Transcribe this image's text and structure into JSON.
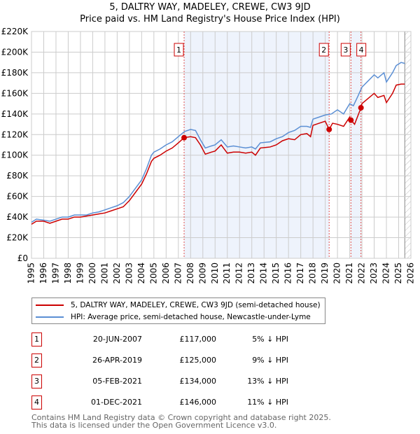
{
  "title": "5, DALTRY WAY, MADELEY, CREWE, CW3 9JD",
  "subtitle": "Price paid vs. HM Land Registry's House Price Index (HPI)",
  "chart_data": {
    "type": "line",
    "xlim": [
      1995,
      2026
    ],
    "ylim": [
      0,
      220000
    ],
    "yticks": [
      {
        "v": 0,
        "l": "£0"
      },
      {
        "v": 20000,
        "l": "£20K"
      },
      {
        "v": 40000,
        "l": "£40K"
      },
      {
        "v": 60000,
        "l": "£60K"
      },
      {
        "v": 80000,
        "l": "£80K"
      },
      {
        "v": 100000,
        "l": "£100K"
      },
      {
        "v": 120000,
        "l": "£120K"
      },
      {
        "v": 140000,
        "l": "£140K"
      },
      {
        "v": 160000,
        "l": "£160K"
      },
      {
        "v": 180000,
        "l": "£180K"
      },
      {
        "v": 200000,
        "l": "£200K"
      },
      {
        "v": 220000,
        "l": "£220K"
      }
    ],
    "xticks": [
      1995,
      1996,
      1997,
      1998,
      1999,
      2000,
      2001,
      2002,
      2003,
      2004,
      2005,
      2006,
      2007,
      2008,
      2009,
      2010,
      2011,
      2012,
      2013,
      2014,
      2015,
      2016,
      2017,
      2018,
      2019,
      2020,
      2021,
      2022,
      2023,
      2024,
      2025,
      2026
    ],
    "grid": true,
    "shaded_ranges": [
      [
        2007.47,
        2019.32
      ],
      [
        2021.1,
        2021.92
      ]
    ],
    "hatched_from": 2025.5,
    "series": [
      {
        "name": "5, DALTRY WAY, MADELEY, CREWE, CW3 9JD (semi-detached house)",
        "color": "#cc0000",
        "x": [
          1995,
          1995.4,
          1996,
          1996.5,
          1997,
          1997.5,
          1998,
          1998.5,
          1999,
          1999.5,
          2000,
          2000.5,
          2001,
          2001.5,
          2002,
          2002.5,
          2003,
          2003.5,
          2004,
          2004.4,
          2004.8,
          2005,
          2005.5,
          2006,
          2006.5,
          2007,
          2007.47,
          2008,
          2008.4,
          2008.8,
          2009.2,
          2009.7,
          2010,
          2010.5,
          2011,
          2011.5,
          2012,
          2012.5,
          2013,
          2013.3,
          2013.7,
          2014.5,
          2015,
          2015.5,
          2016,
          2016.5,
          2017,
          2017.5,
          2017.8,
          2018,
          2018.5,
          2019,
          2019.32,
          2019.6,
          2020,
          2020.5,
          2021,
          2021.1,
          2021.4,
          2021.92,
          2022,
          2022.5,
          2023,
          2023.3,
          2023.8,
          2024,
          2024.5,
          2024.8,
          2025.2,
          2025.5
        ],
        "y": [
          33000,
          36000,
          36000,
          34000,
          36000,
          38000,
          38000,
          40000,
          40000,
          41000,
          42000,
          43000,
          44000,
          46000,
          48000,
          50000,
          56000,
          64000,
          72000,
          82000,
          94000,
          97000,
          100000,
          104000,
          107000,
          112000,
          117000,
          118000,
          117000,
          110000,
          101000,
          103000,
          104000,
          110000,
          102000,
          103000,
          103000,
          102000,
          103000,
          100000,
          107000,
          108000,
          110000,
          114000,
          116000,
          115000,
          120000,
          121000,
          118000,
          129000,
          131000,
          133000,
          125000,
          131000,
          130000,
          128000,
          137000,
          134000,
          130000,
          146000,
          150000,
          155000,
          160000,
          156000,
          158000,
          151000,
          160000,
          168000,
          169000,
          169000
        ]
      },
      {
        "name": "HPI: Average price, semi-detached house, Newcastle-under-Lyme",
        "color": "#5b8fd4",
        "x": [
          1995,
          1995.4,
          1996,
          1996.5,
          1997,
          1997.5,
          1998,
          1998.5,
          1999,
          1999.5,
          2000,
          2000.5,
          2001,
          2001.5,
          2002,
          2002.5,
          2003,
          2003.5,
          2004,
          2004.4,
          2004.8,
          2005,
          2005.5,
          2006,
          2006.5,
          2007,
          2007.5,
          2008,
          2008.4,
          2008.8,
          2009.2,
          2009.7,
          2010,
          2010.5,
          2011,
          2011.5,
          2012,
          2012.5,
          2013,
          2013.3,
          2013.7,
          2014.5,
          2015,
          2015.5,
          2016,
          2016.5,
          2017,
          2017.5,
          2017.8,
          2018,
          2018.5,
          2019,
          2019.5,
          2020,
          2020.5,
          2021,
          2021.3,
          2021.7,
          2022,
          2022.5,
          2023,
          2023.3,
          2023.8,
          2024,
          2024.5,
          2024.8,
          2025.2,
          2025.5
        ],
        "y": [
          35000,
          38000,
          37000,
          36000,
          38000,
          40000,
          40000,
          42000,
          42000,
          42000,
          44000,
          45000,
          47000,
          49000,
          51000,
          54000,
          60000,
          68000,
          76000,
          87000,
          100000,
          103000,
          106000,
          110000,
          113000,
          118000,
          123000,
          125000,
          124000,
          115000,
          107000,
          109000,
          110000,
          115000,
          108000,
          109000,
          108000,
          107000,
          108000,
          106000,
          112000,
          113000,
          116000,
          118000,
          122000,
          124000,
          128000,
          128000,
          127000,
          135000,
          137000,
          139000,
          140000,
          144000,
          140000,
          150000,
          148000,
          158000,
          166000,
          172000,
          178000,
          175000,
          180000,
          171000,
          180000,
          187000,
          190000,
          189000
        ]
      }
    ],
    "sales": [
      {
        "label": "1",
        "x": 2007.47,
        "y": 117000
      },
      {
        "label": "2",
        "x": 2019.32,
        "y": 125000
      },
      {
        "label": "3",
        "x": 2021.1,
        "y": 134000
      },
      {
        "label": "4",
        "x": 2021.92,
        "y": 146000
      }
    ]
  },
  "legend": {
    "items": [
      {
        "label": "5, DALTRY WAY, MADELEY, CREWE, CW3 9JD (semi-detached house)",
        "color": "#cc0000"
      },
      {
        "label": "HPI: Average price, semi-detached house, Newcastle-under-Lyme",
        "color": "#5b8fd4"
      }
    ]
  },
  "table": [
    {
      "n": "1",
      "date": "20-JUN-2007",
      "price": "£117,000",
      "hpi": "5% ↓ HPI"
    },
    {
      "n": "2",
      "date": "26-APR-2019",
      "price": "£125,000",
      "hpi": "9% ↓ HPI"
    },
    {
      "n": "3",
      "date": "05-FEB-2021",
      "price": "£134,000",
      "hpi": "13% ↓ HPI"
    },
    {
      "n": "4",
      "date": "01-DEC-2021",
      "price": "£146,000",
      "hpi": "11% ↓ HPI"
    }
  ],
  "footer": {
    "line1": "Contains HM Land Registry data © Crown copyright and database right 2025.",
    "line2": "This data is licensed under the Open Government Licence v3.0."
  }
}
